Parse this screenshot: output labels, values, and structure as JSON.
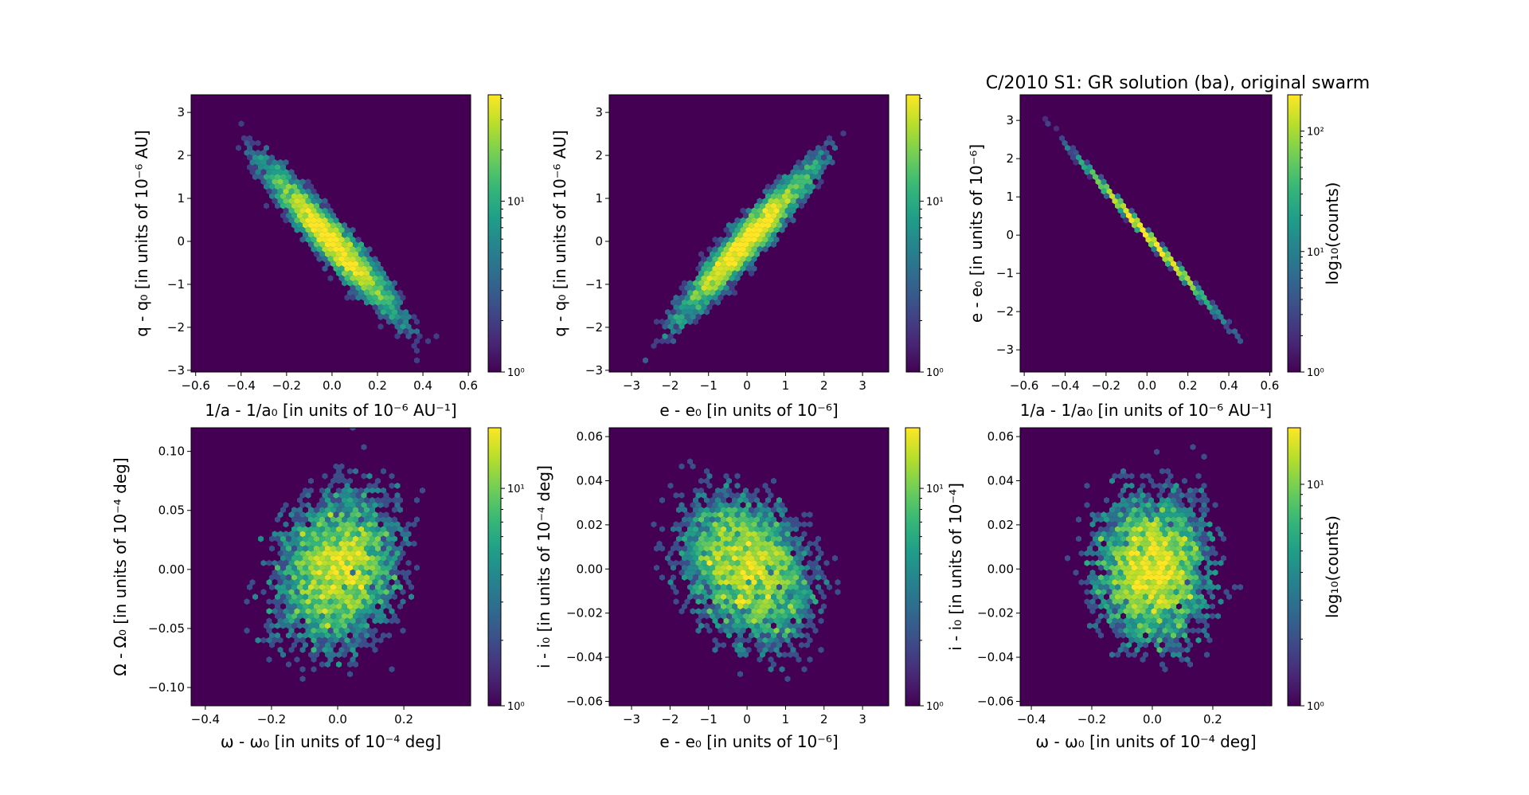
{
  "figure": {
    "title": "C/2010 S1: GR solution (ba), original swarm",
    "background": "#ffffff",
    "colormap": "viridis",
    "empty_color": "#440154"
  },
  "chart_data": [
    {
      "type": "hexbin",
      "xlabel": "1/a - 1/a₀ [in units of 10⁻⁶ AU⁻¹]",
      "ylabel": "q - q₀ [in units of 10⁻⁶ AU]",
      "xlim": [
        -0.62,
        0.61
      ],
      "ylim": [
        -3.04,
        3.41
      ],
      "xticks": [
        -0.6,
        -0.4,
        -0.2,
        0.0,
        0.2,
        0.4,
        0.6
      ],
      "xtick_labels": [
        "−0.6",
        "−0.4",
        "−0.2",
        "0.0",
        "0.2",
        "0.4",
        "0.6"
      ],
      "yticks": [
        -3,
        -2,
        -1,
        0,
        1,
        2,
        3
      ],
      "ytick_labels": [
        "−3",
        "−2",
        "−1",
        "0",
        "1",
        "2",
        "3"
      ],
      "colorbar": {
        "scale": "log",
        "max_count": 42,
        "tick_labels": [
          "10⁰",
          "10¹"
        ],
        "label": ""
      },
      "distribution": {
        "mean": [
          0,
          0
        ],
        "sd": [
          0.15,
          0.9
        ],
        "corr": -0.95
      }
    },
    {
      "type": "hexbin",
      "xlabel": "e - e₀ [in units of 10⁻⁶]",
      "ylabel": "q - q₀ [in units of 10⁻⁶ AU]",
      "xlim": [
        -3.58,
        3.68
      ],
      "ylim": [
        -3.04,
        3.41
      ],
      "xticks": [
        -3,
        -2,
        -1,
        0,
        1,
        2,
        3
      ],
      "xtick_labels": [
        "−3",
        "−2",
        "−1",
        "0",
        "1",
        "2",
        "3"
      ],
      "yticks": [
        -3,
        -2,
        -1,
        0,
        1,
        2,
        3
      ],
      "ytick_labels": [
        "−3",
        "−2",
        "−1",
        "0",
        "1",
        "2",
        "3"
      ],
      "colorbar": {
        "scale": "log",
        "max_count": 42,
        "tick_labels": [
          "10⁰",
          "10¹"
        ],
        "label": ""
      },
      "distribution": {
        "mean": [
          0,
          0
        ],
        "sd": [
          0.9,
          0.9
        ],
        "corr": 0.95
      }
    },
    {
      "type": "hexbin",
      "title": "C/2010 S1: GR solution (ba), original swarm",
      "xlabel": "1/a - 1/a₀ [in units of 10⁻⁶ AU⁻¹]",
      "ylabel": "e - e₀ [in units of 10⁻⁶]",
      "xlim": [
        -0.62,
        0.61
      ],
      "ylim": [
        -3.58,
        3.67
      ],
      "xticks": [
        -0.6,
        -0.4,
        -0.2,
        0.0,
        0.2,
        0.4,
        0.6
      ],
      "xtick_labels": [
        "−0.6",
        "−0.4",
        "−0.2",
        "0.0",
        "0.2",
        "0.4",
        "0.6"
      ],
      "yticks": [
        -3,
        -2,
        -1,
        0,
        1,
        2,
        3
      ],
      "ytick_labels": [
        "−3",
        "−2",
        "−1",
        "0",
        "1",
        "2",
        "3"
      ],
      "colorbar": {
        "scale": "log",
        "max_count": 200,
        "tick_labels": [
          "10⁰",
          "10¹",
          "10²"
        ],
        "label": "log₁₀(counts)"
      },
      "distribution": {
        "mean": [
          0,
          0
        ],
        "sd": [
          0.15,
          0.9
        ],
        "corr": -0.999
      }
    },
    {
      "type": "hexbin",
      "xlabel": "ω - ω₀ [in units of 10⁻⁴ deg]",
      "ylabel": "Ω - Ω₀ [in units of 10⁻⁴ deg]",
      "xlim": [
        -0.443,
        0.402
      ],
      "ylim": [
        -0.1155,
        0.12
      ],
      "xticks": [
        -0.4,
        -0.2,
        0.0,
        0.2
      ],
      "xtick_labels": [
        "−0.4",
        "−0.2",
        "0.0",
        "0.2"
      ],
      "yticks": [
        -0.1,
        -0.05,
        0.0,
        0.05,
        0.1
      ],
      "ytick_labels": [
        "−0.10",
        "−0.05",
        "0.00",
        "0.05",
        "0.10"
      ],
      "colorbar": {
        "scale": "log",
        "max_count": 19,
        "tick_labels": [
          "10⁰",
          "10¹"
        ],
        "label": ""
      },
      "distribution": {
        "mean": [
          0,
          0
        ],
        "sd": [
          0.1,
          0.035
        ],
        "corr": 0.2
      }
    },
    {
      "type": "hexbin",
      "xlabel": "e - e₀ [in units of 10⁻⁶]",
      "ylabel": "i - i₀ [in units of 10⁻⁴ deg]",
      "xlim": [
        -3.58,
        3.68
      ],
      "ylim": [
        -0.062,
        0.064
      ],
      "xticks": [
        -3,
        -2,
        -1,
        0,
        1,
        2,
        3
      ],
      "xtick_labels": [
        "−3",
        "−2",
        "−1",
        "0",
        "1",
        "2",
        "3"
      ],
      "yticks": [
        -0.06,
        -0.04,
        -0.02,
        0.0,
        0.02,
        0.04,
        0.06
      ],
      "ytick_labels": [
        "−0.06",
        "−0.04",
        "−0.02",
        "0.00",
        "0.02",
        "0.04",
        "0.06"
      ],
      "colorbar": {
        "scale": "log",
        "max_count": 19,
        "tick_labels": [
          "10⁰",
          "10¹"
        ],
        "label": ""
      },
      "distribution": {
        "mean": [
          0,
          0
        ],
        "sd": [
          0.9,
          0.018
        ],
        "corr": -0.25
      }
    },
    {
      "type": "hexbin",
      "xlabel": "ω - ω₀ [in units of 10⁻⁴ deg]",
      "ylabel": "i - i₀ [in units of 10⁻⁴]",
      "xlim": [
        -0.437,
        0.395
      ],
      "ylim": [
        -0.062,
        0.064
      ],
      "xticks": [
        -0.4,
        -0.2,
        0.0,
        0.2
      ],
      "xtick_labels": [
        "−0.4",
        "−0.2",
        "0.0",
        "0.2"
      ],
      "yticks": [
        -0.06,
        -0.04,
        -0.02,
        0.0,
        0.02,
        0.04,
        0.06
      ],
      "ytick_labels": [
        "−0.06",
        "−0.04",
        "−0.02",
        "0.00",
        "0.02",
        "0.04",
        "0.06"
      ],
      "colorbar": {
        "scale": "log",
        "max_count": 18,
        "tick_labels": [
          "10⁰",
          "10¹"
        ],
        "label": "log₁₀(counts)"
      },
      "distribution": {
        "mean": [
          0,
          0
        ],
        "sd": [
          0.1,
          0.018
        ],
        "corr": 0.0
      }
    }
  ]
}
